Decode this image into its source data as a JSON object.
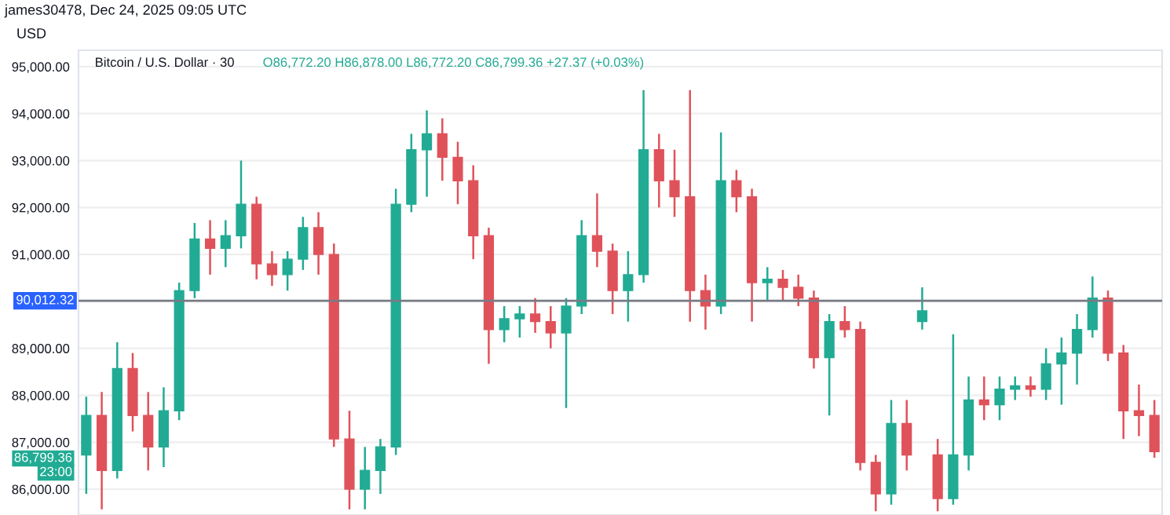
{
  "chart_data": {
    "type": "candlestick",
    "title": "Bitcoin / U.S. Dollar · 30",
    "subtitle": "O86,772.20 H86,878.00 L86,772.20 C86,799.36 +27.37 (+0.03%)",
    "ylabel": "USD",
    "annotations": [
      "james30478, Dec 24, 2025 09:05 UTC",
      "86,799.36",
      "23:00"
    ],
    "categories": [
      null,
      null,
      null,
      null,
      null,
      null,
      null,
      null,
      null,
      null,
      null,
      null,
      null,
      null,
      null,
      null,
      null,
      null,
      null,
      null,
      null,
      null,
      null,
      null,
      null,
      null,
      null,
      null,
      null,
      null,
      null,
      null,
      null,
      null,
      null,
      null,
      null,
      null,
      null,
      null,
      null,
      null,
      null,
      null,
      null,
      null,
      null,
      null,
      null,
      null,
      null,
      null,
      null,
      null,
      null,
      null,
      null,
      null,
      null,
      null,
      null,
      null,
      null,
      null,
      null,
      null,
      null,
      null,
      null,
      null
    ],
    "ohlc": [
      [
        86730,
        87970,
        85900,
        87570
      ],
      [
        87570,
        88070,
        85570,
        86400
      ],
      [
        86400,
        89130,
        86230,
        88570
      ],
      [
        88570,
        88900,
        87230,
        87570
      ],
      [
        87570,
        88070,
        86400,
        86900
      ],
      [
        86900,
        88170,
        86470,
        87670
      ],
      [
        87670,
        90400,
        87470,
        90230
      ],
      [
        90230,
        91670,
        90070,
        91330
      ],
      [
        91330,
        91730,
        90570,
        91130
      ],
      [
        91130,
        91730,
        90730,
        91400
      ],
      [
        91400,
        93000,
        91130,
        92070
      ],
      [
        92070,
        92230,
        90470,
        90800
      ],
      [
        90800,
        91070,
        90330,
        90570
      ],
      [
        90570,
        91070,
        90230,
        90900
      ],
      [
        90900,
        91800,
        90670,
        91570
      ],
      [
        91570,
        91900,
        90570,
        91000
      ],
      [
        91000,
        91230,
        86900,
        87070
      ],
      [
        87070,
        87670,
        85570,
        86000
      ],
      [
        86000,
        86900,
        85570,
        86400
      ],
      [
        86400,
        87070,
        85900,
        86900
      ],
      [
        86900,
        92400,
        86730,
        92070
      ],
      [
        92070,
        93570,
        91900,
        93230
      ],
      [
        93230,
        94070,
        92230,
        93570
      ],
      [
        93570,
        93900,
        92570,
        93070
      ],
      [
        93070,
        93400,
        92070,
        92570
      ],
      [
        92570,
        92900,
        90900,
        91400
      ],
      [
        91400,
        91570,
        88670,
        89400
      ],
      [
        89400,
        89900,
        89130,
        89630
      ],
      [
        89630,
        89900,
        89230,
        89730
      ],
      [
        89730,
        90070,
        89330,
        89570
      ],
      [
        89570,
        89900,
        89000,
        89330
      ],
      [
        89330,
        90070,
        87730,
        89900
      ],
      [
        89900,
        91730,
        89730,
        91400
      ],
      [
        91400,
        92300,
        90730,
        91070
      ],
      [
        91070,
        91230,
        89730,
        90230
      ],
      [
        90230,
        91070,
        89570,
        90570
      ],
      [
        90570,
        94500,
        90400,
        93230
      ],
      [
        93230,
        93570,
        92000,
        92570
      ],
      [
        92570,
        93230,
        91800,
        92230
      ],
      [
        92230,
        94500,
        89570,
        90230
      ],
      [
        90230,
        90570,
        89400,
        89900
      ],
      [
        89900,
        93600,
        89730,
        92570
      ],
      [
        92570,
        92800,
        91900,
        92230
      ],
      [
        92230,
        92400,
        89570,
        90400
      ],
      [
        90400,
        90730,
        90000,
        90470
      ],
      [
        90470,
        90670,
        90000,
        90300
      ],
      [
        90300,
        90570,
        89900,
        90070
      ],
      [
        90070,
        90230,
        88570,
        88800
      ],
      [
        88800,
        89730,
        87570,
        89570
      ],
      [
        89570,
        89900,
        89230,
        89400
      ],
      [
        89400,
        89570,
        86400,
        86570
      ],
      [
        86570,
        86730,
        85530,
        85900
      ],
      [
        85900,
        87900,
        85670,
        87400
      ],
      [
        87400,
        87900,
        86400,
        86730
      ],
      [
        89570,
        90300,
        89400,
        89800
      ],
      [
        86730,
        87070,
        85530,
        85800
      ],
      [
        85800,
        89300,
        85670,
        86730
      ],
      [
        86730,
        88400,
        86400,
        87900
      ],
      [
        87900,
        88400,
        87470,
        87800
      ],
      [
        87800,
        88400,
        87470,
        88130
      ],
      [
        88130,
        88400,
        87900,
        88200
      ],
      [
        88200,
        88400,
        87970,
        88130
      ],
      [
        88130,
        89000,
        87900,
        88670
      ],
      [
        88670,
        89230,
        87800,
        88900
      ],
      [
        88900,
        89730,
        88230,
        89400
      ],
      [
        89400,
        90530,
        89230,
        90070
      ],
      [
        90070,
        90230,
        88730,
        88900
      ],
      [
        88900,
        89070,
        87070,
        87670
      ],
      [
        87670,
        88230,
        87130,
        87570
      ],
      [
        87570,
        87900,
        86670,
        86800
      ]
    ],
    "ylim": [
      85450,
      95350
    ],
    "yticks": [
      {
        "value": 86000,
        "label": "86,000.00"
      },
      {
        "value": 87000,
        "label": "87,000.00"
      },
      {
        "value": 88000,
        "label": "88,000.00"
      },
      {
        "value": 89000,
        "label": "89,000.00"
      },
      {
        "value": 90000,
        "label": null
      },
      {
        "value": 91000,
        "label": "91,000.00"
      },
      {
        "value": 92000,
        "label": "92,000.00"
      },
      {
        "value": 93000,
        "label": "93,000.00"
      },
      {
        "value": 94000,
        "label": "94,000.00"
      },
      {
        "value": 95000,
        "label": "95,000.00"
      }
    ],
    "ref_lines": [
      {
        "axis": "y",
        "value": 90012.32,
        "label": "90,012.32",
        "color": "#787b86"
      }
    ],
    "grid": "y",
    "tick_labels": "y"
  }
}
